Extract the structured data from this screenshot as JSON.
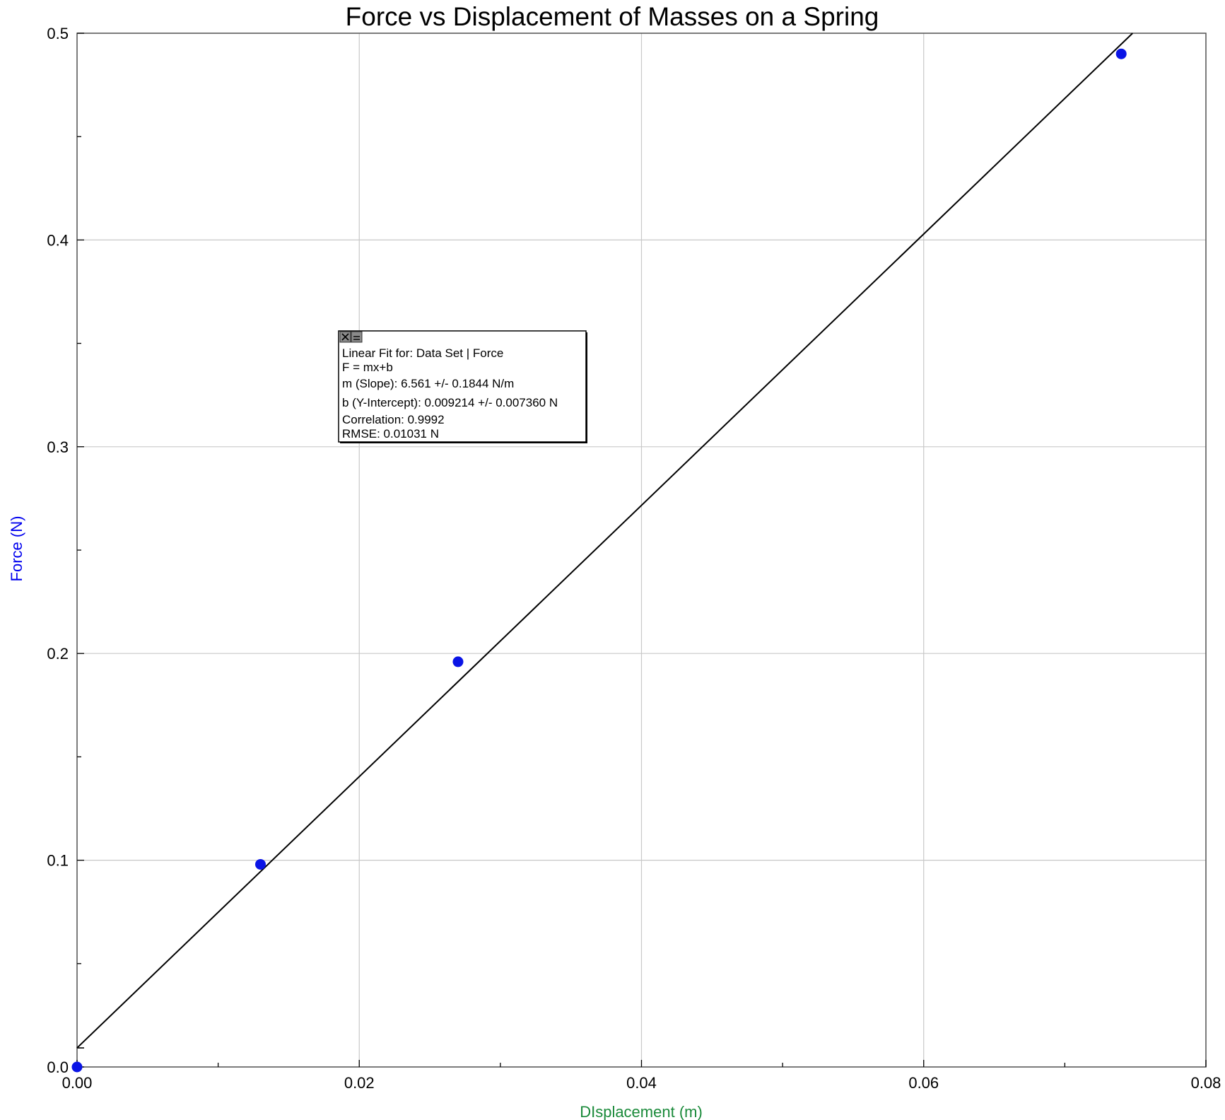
{
  "chart_data": {
    "type": "scatter",
    "title": "Force vs Displacement of Masses on a Spring",
    "xlabel": "DIsplacement (m)",
    "ylabel": "Force (N)",
    "xlim": [
      0.0,
      0.08
    ],
    "ylim": [
      0.0,
      0.5
    ],
    "x_ticks": [
      "0.00",
      "0.02",
      "0.04",
      "0.06",
      "0.08"
    ],
    "y_ticks": [
      "0.0",
      "0.1",
      "0.2",
      "0.3",
      "0.4",
      "0.5"
    ],
    "grid": true,
    "series": [
      {
        "x": [
          0.0,
          0.013,
          0.027,
          0.074
        ],
        "y": [
          0.0,
          0.098,
          0.196,
          0.49
        ],
        "color": "#0a14e6"
      }
    ],
    "fit": {
      "slope": 6.561,
      "intercept": 0.009214,
      "color": "#000000"
    },
    "fit_box": {
      "lines": [
        "Linear Fit for: Data Set | Force",
        "F = mx+b",
        "m (Slope): 6.561 +/- 0.1844 N/m",
        "b (Y-Intercept): 0.009214 +/- 0.007360 N",
        "Correlation: 0.9992",
        "RMSE: 0.01031 N"
      ]
    }
  }
}
